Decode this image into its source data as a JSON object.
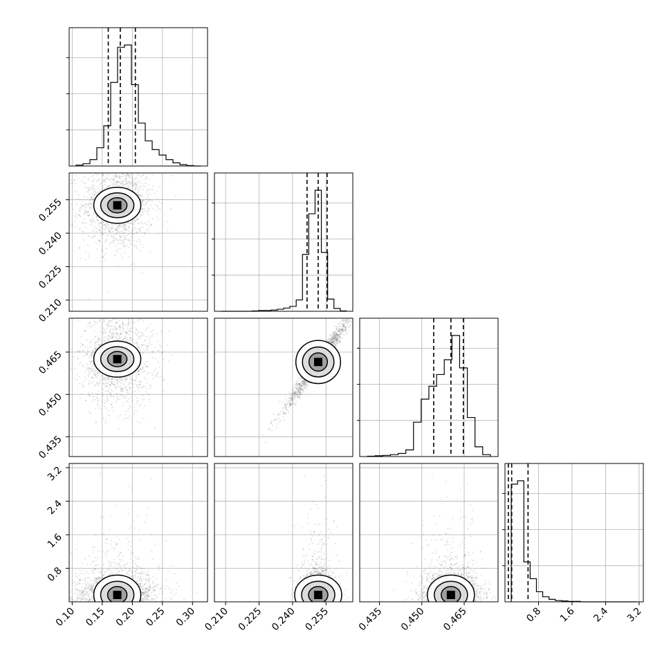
{
  "chart_data": {
    "type": "corner",
    "parameters": [
      {
        "range": [
          0.095,
          0.325
        ],
        "ticks": [
          "0.10",
          "0.15",
          "0.20",
          "0.25",
          "0.30"
        ],
        "tick_values": [
          0.1,
          0.15,
          0.2,
          0.25,
          0.3
        ],
        "quantiles": [
          0.16,
          0.18,
          0.205
        ]
      },
      {
        "range": [
          0.205,
          0.267
        ],
        "ticks": [
          "0.210",
          "0.225",
          "0.240",
          "0.255"
        ],
        "tick_values": [
          0.21,
          0.225,
          0.24,
          0.255
        ],
        "quantiles": [
          0.2465,
          0.2515,
          0.2555
        ]
      },
      {
        "range": [
          0.428,
          0.477
        ],
        "ticks": [
          "0.435",
          "0.450",
          "0.465"
        ],
        "tick_values": [
          0.435,
          0.45,
          0.465
        ],
        "quantiles": [
          0.4542,
          0.4603,
          0.4647
        ]
      },
      {
        "range": [
          0.0,
          3.3
        ],
        "ticks": [
          "0.8",
          "1.6",
          "2.4",
          "3.2"
        ],
        "tick_values": [
          0.8,
          1.6,
          2.4,
          3.2
        ],
        "quantiles": [
          0.08,
          0.16,
          0.55
        ]
      }
    ],
    "histograms": [
      {
        "param": 0,
        "counts": [
          2,
          5,
          14,
          40,
          88,
          183,
          260,
          265,
          178,
          94,
          55,
          36,
          24,
          14,
          7,
          3,
          1,
          0
        ]
      },
      {
        "param": 1,
        "counts": [
          0,
          0,
          0,
          0,
          0,
          1,
          2,
          2,
          3,
          5,
          8,
          12,
          28,
          140,
          240,
          298,
          145,
          30,
          7,
          1
        ]
      },
      {
        "param": 2,
        "counts": [
          1,
          2,
          3,
          5,
          8,
          17,
          88,
          147,
          180,
          210,
          248,
          310,
          227,
          100,
          25,
          5
        ]
      },
      {
        "param": 3,
        "counts": [
          280,
          288,
          95,
          55,
          24,
          12,
          6,
          3,
          2,
          1,
          1,
          0,
          0,
          0,
          0,
          0,
          0,
          0,
          0,
          0
        ]
      }
    ],
    "pairs": [
      {
        "x": 0,
        "y": 1,
        "shape": "blob",
        "cx": 0.175,
        "cy": 0.2525,
        "sx": 0.03,
        "sy": 0.01
      },
      {
        "x": 0,
        "y": 2,
        "shape": "blob",
        "cx": 0.175,
        "cy": 0.4625,
        "sx": 0.03,
        "sy": 0.0085
      },
      {
        "x": 1,
        "y": 2,
        "shape": "diagonal",
        "cx": 0.2515,
        "cy": 0.4615,
        "sx": 0.0045,
        "sy": 0.005
      },
      {
        "x": 0,
        "y": 3,
        "shape": "skewed",
        "cx": 0.175,
        "cy": 0.2,
        "sx": 0.035,
        "sy": 0.35
      },
      {
        "x": 1,
        "y": 3,
        "shape": "skewed",
        "cx": 0.2515,
        "cy": 0.2,
        "sx": 0.004,
        "sy": 0.35
      },
      {
        "x": 2,
        "y": 3,
        "shape": "skewed",
        "cx": 0.4603,
        "cy": 0.2,
        "sx": 0.0055,
        "sy": 0.35
      }
    ],
    "grid": true,
    "title": "",
    "xlabel": "",
    "ylabel": ""
  }
}
